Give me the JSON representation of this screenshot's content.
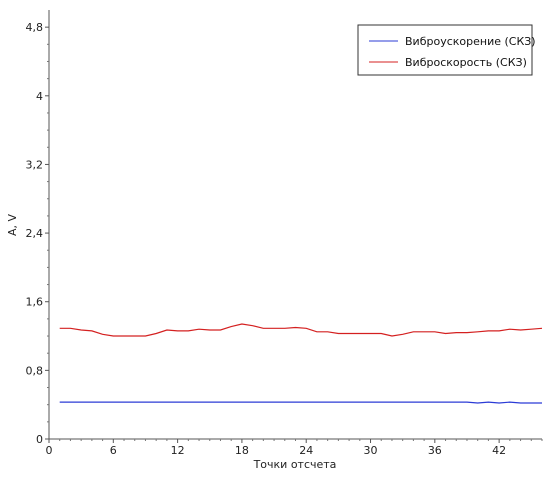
{
  "chart_data": {
    "type": "line",
    "xlabel": "Точки отсчета",
    "ylabel": "A, V",
    "xlim": [
      0,
      46
    ],
    "ylim": [
      0,
      5
    ],
    "xticks": [
      0,
      6,
      12,
      18,
      24,
      30,
      36,
      42
    ],
    "xtick_labels": [
      "0",
      "6",
      "12",
      "18",
      "24",
      "30",
      "36",
      "42"
    ],
    "yticks": [
      0,
      0.8,
      1.6,
      2.4,
      3.2,
      4,
      4.8
    ],
    "ytick_labels": [
      "0",
      "0,8",
      "1,6",
      "2,4",
      "3,2",
      "4",
      "4,8"
    ],
    "grid": false,
    "legend_position": "top-right",
    "x": [
      1,
      2,
      3,
      4,
      5,
      6,
      7,
      8,
      9,
      10,
      11,
      12,
      13,
      14,
      15,
      16,
      17,
      18,
      19,
      20,
      21,
      22,
      23,
      24,
      25,
      26,
      27,
      28,
      29,
      30,
      31,
      32,
      33,
      34,
      35,
      36,
      37,
      38,
      39,
      40,
      41,
      42,
      43,
      44,
      45,
      46
    ],
    "series": [
      {
        "name": "Виброускорение (СКЗ)",
        "color": "#2b3bd6",
        "values": [
          0.43,
          0.43,
          0.43,
          0.43,
          0.43,
          0.43,
          0.43,
          0.43,
          0.43,
          0.43,
          0.43,
          0.43,
          0.43,
          0.43,
          0.43,
          0.43,
          0.43,
          0.43,
          0.43,
          0.43,
          0.43,
          0.43,
          0.43,
          0.43,
          0.43,
          0.43,
          0.43,
          0.43,
          0.43,
          0.43,
          0.43,
          0.43,
          0.43,
          0.43,
          0.43,
          0.43,
          0.43,
          0.43,
          0.43,
          0.42,
          0.43,
          0.42,
          0.43,
          0.42,
          0.42,
          0.42
        ]
      },
      {
        "name": "Виброскорость (СКЗ)",
        "color": "#d42020",
        "values": [
          1.29,
          1.29,
          1.27,
          1.26,
          1.22,
          1.2,
          1.2,
          1.2,
          1.2,
          1.23,
          1.27,
          1.26,
          1.26,
          1.28,
          1.27,
          1.27,
          1.31,
          1.34,
          1.32,
          1.29,
          1.29,
          1.29,
          1.3,
          1.29,
          1.25,
          1.25,
          1.23,
          1.23,
          1.23,
          1.23,
          1.23,
          1.2,
          1.22,
          1.25,
          1.25,
          1.25,
          1.23,
          1.24,
          1.24,
          1.25,
          1.26,
          1.26,
          1.28,
          1.27,
          1.28,
          1.29
        ]
      }
    ]
  }
}
